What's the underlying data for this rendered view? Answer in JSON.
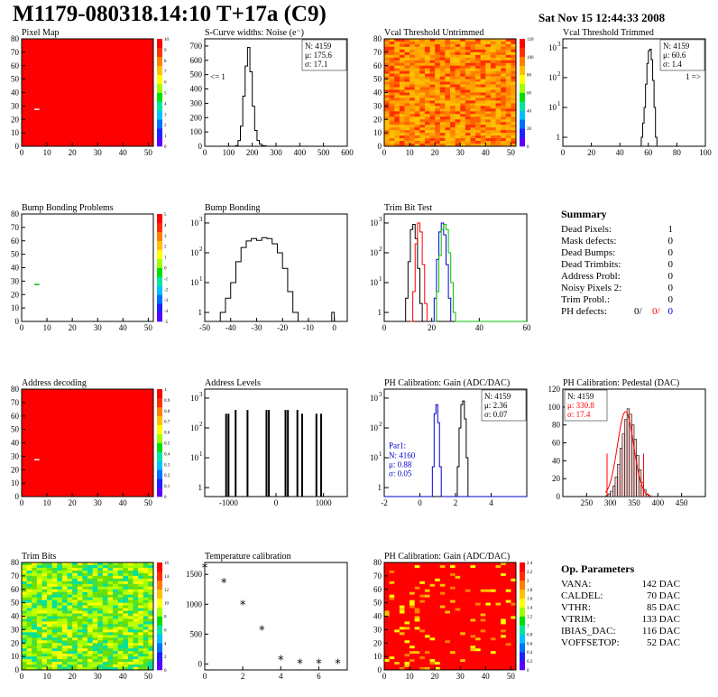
{
  "header": {
    "title": "M1179-080318.14:10 T+17a (C9)",
    "date": "Sat Nov 15 12:44:33 2008"
  },
  "colors": {
    "red": "#ff0000",
    "blue": "#0000cc",
    "green": "#00c000",
    "black": "#000000"
  },
  "summary": {
    "title": "Summary",
    "rows": [
      {
        "label": "Dead Pixels:",
        "value": "1"
      },
      {
        "label": "Mask defects:",
        "value": "0"
      },
      {
        "label": "Dead Bumps:",
        "value": "0"
      },
      {
        "label": "Dead Trimbits:",
        "value": "0"
      },
      {
        "label": "Address Probl:",
        "value": "0"
      },
      {
        "label": "Noisy Pixels 2:",
        "value": "0"
      },
      {
        "label": "Trim Probl.:",
        "value": "0"
      }
    ],
    "ph_label": "PH defects:",
    "ph_values": [
      "0/",
      "0/",
      "0"
    ]
  },
  "op_params": {
    "title": "Op. Parameters",
    "rows": [
      {
        "label": "VANA:",
        "value": "142 DAC"
      },
      {
        "label": "CALDEL:",
        "value": "70 DAC"
      },
      {
        "label": "VTHR:",
        "value": "85 DAC"
      },
      {
        "label": "VTRIM:",
        "value": "133 DAC"
      },
      {
        "label": "IBIAS_DAC:",
        "value": "116 DAC"
      },
      {
        "label": "VOFFSETOP:",
        "value": "52 DAC"
      }
    ]
  },
  "chart_data": [
    {
      "type": "heatmap",
      "title": "Pixel Map",
      "xlim": [
        0,
        52
      ],
      "ylim": [
        0,
        80
      ],
      "xticks": [
        0,
        10,
        20,
        30,
        40,
        50
      ],
      "yticks": [
        0,
        10,
        20,
        30,
        40,
        50,
        60,
        70,
        80
      ],
      "fill": "uniform-red",
      "colorbar": [
        "0",
        "1",
        "2",
        "3",
        "4",
        "5",
        "6",
        "7",
        "8",
        "9",
        "10"
      ],
      "marks": [
        [
          5,
          28
        ]
      ]
    },
    {
      "type": "line",
      "title": "S-Curve widths: Noise (e⁻)",
      "xlim": [
        0,
        600
      ],
      "ylim": [
        0,
        750
      ],
      "xticks": [
        0,
        100,
        200,
        300,
        400,
        500,
        600
      ],
      "yticks": [
        0,
        100,
        200,
        300,
        400,
        500,
        600,
        700
      ],
      "stats": [
        "N: 4159",
        "μ: 175.6",
        "σ: 17.1"
      ],
      "note": "<= 1",
      "series": [
        {
          "name": "",
          "x": [
            120,
            130,
            140,
            150,
            160,
            170,
            180,
            190,
            200,
            210,
            220,
            230,
            240,
            250,
            260
          ],
          "y": [
            0,
            5,
            40,
            140,
            350,
            560,
            690,
            520,
            280,
            110,
            40,
            15,
            5,
            2,
            0
          ]
        }
      ]
    },
    {
      "type": "heatmap",
      "title": "Vcal Threshold Untrimmed",
      "xlim": [
        0,
        52
      ],
      "ylim": [
        0,
        80
      ],
      "xticks": [
        0,
        10,
        20,
        30,
        40,
        50
      ],
      "yticks": [
        0,
        10,
        20,
        30,
        40,
        50,
        60,
        70,
        80
      ],
      "fill": "noise-orange",
      "colorbar": [
        "0",
        "20",
        "40",
        "60",
        "80",
        "100",
        "120"
      ]
    },
    {
      "type": "line",
      "log": true,
      "title": "Vcal Threshold Trimmed",
      "xlim": [
        0,
        100
      ],
      "ylim": [
        0.5,
        2000
      ],
      "xticks": [
        0,
        20,
        40,
        60,
        80,
        100
      ],
      "yticks_log": [
        1,
        10,
        100,
        1000
      ],
      "stats": [
        "N: 4159",
        "μ: 60.6",
        "σ: 1.4"
      ],
      "note": "1 =>",
      "series": [
        {
          "name": "",
          "x": [
            54,
            55,
            56,
            57,
            58,
            59,
            60,
            61,
            62,
            63,
            64,
            65,
            66
          ],
          "y": [
            0,
            1,
            3,
            10,
            60,
            300,
            800,
            900,
            400,
            80,
            10,
            1,
            0
          ]
        }
      ]
    },
    {
      "type": "heatmap",
      "title": "Bump Bonding Problems",
      "xlim": [
        0,
        52
      ],
      "ylim": [
        0,
        80
      ],
      "xticks": [
        0,
        10,
        20,
        30,
        40,
        50
      ],
      "yticks": [
        0,
        10,
        20,
        30,
        40,
        50,
        60,
        70,
        80
      ],
      "fill": "white",
      "colorbar": [
        "-5",
        "-4",
        "-3",
        "-2",
        "-1",
        "0",
        "1",
        "2",
        "3",
        "4",
        "5"
      ],
      "marks": [
        [
          5,
          28
        ]
      ]
    },
    {
      "type": "line",
      "log": true,
      "title": "Bump Bonding",
      "xlim": [
        -50,
        5
      ],
      "ylim": [
        0.5,
        2000
      ],
      "xticks": [
        -50,
        -40,
        -30,
        -20,
        -10,
        0
      ],
      "yticks_log": [
        1,
        10,
        100,
        1000
      ],
      "series": [
        {
          "name": "",
          "x": [
            -46,
            -44,
            -42,
            -40,
            -38,
            -36,
            -34,
            -32,
            -30,
            -28,
            -26,
            -24,
            -22,
            -20,
            -18,
            -16,
            -14,
            -1,
            0
          ],
          "y": [
            0,
            1,
            3,
            10,
            50,
            150,
            250,
            300,
            260,
            320,
            300,
            200,
            100,
            30,
            5,
            1,
            0,
            1,
            0
          ]
        }
      ]
    },
    {
      "type": "line",
      "log": true,
      "title": "Trim Bit Test",
      "xlim": [
        0,
        60
      ],
      "ylim": [
        0.5,
        2000
      ],
      "xticks": [
        0,
        20,
        40,
        60
      ],
      "yticks_log": [
        1,
        10,
        100,
        1000
      ],
      "series": [
        {
          "name": "",
          "color": "black",
          "x": [
            8,
            9,
            10,
            11,
            12,
            13,
            14,
            15,
            16
          ],
          "y": [
            0,
            3,
            50,
            600,
            900,
            300,
            30,
            2,
            0
          ]
        },
        {
          "name": "",
          "color": "red",
          "x": [
            11,
            12,
            13,
            14,
            15,
            16,
            17,
            18
          ],
          "y": [
            0,
            5,
            200,
            1000,
            500,
            40,
            2,
            0
          ]
        },
        {
          "name": "",
          "color": "blue",
          "x": [
            20,
            21,
            22,
            23,
            24,
            25,
            26,
            27,
            28
          ],
          "y": [
            0,
            3,
            60,
            500,
            1000,
            400,
            40,
            3,
            0
          ]
        },
        {
          "name": "",
          "color": "green",
          "x": [
            21,
            22,
            23,
            24,
            25,
            26,
            27,
            28,
            29,
            30,
            60
          ],
          "y": [
            0,
            5,
            80,
            600,
            900,
            600,
            100,
            10,
            1,
            0,
            0
          ]
        }
      ]
    },
    {
      "type": "heatmap",
      "title": "Address decoding",
      "xlim": [
        0,
        52
      ],
      "ylim": [
        0,
        80
      ],
      "xticks": [
        0,
        10,
        20,
        30,
        40,
        50
      ],
      "yticks": [
        0,
        10,
        20,
        30,
        40,
        50,
        60,
        70,
        80
      ],
      "fill": "uniform-red",
      "colorbar": [
        "0",
        "0.1",
        "0.2",
        "0.3",
        "0.4",
        "0.5",
        "0.6",
        "0.7",
        "0.8",
        "0.9",
        "1"
      ],
      "marks": [
        [
          5,
          28
        ]
      ]
    },
    {
      "type": "bar",
      "log": true,
      "title": "Address Levels",
      "xlim": [
        -1500,
        1500
      ],
      "ylim": [
        0.5,
        2000
      ],
      "xticks": [
        -1000,
        0,
        1000
      ],
      "yticks_log": [
        1,
        10,
        100,
        1000
      ],
      "x": [
        -1050,
        -1000,
        -850,
        -600,
        -200,
        -150,
        200,
        250,
        450,
        550,
        850,
        950
      ],
      "values": [
        300,
        300,
        400,
        400,
        400,
        400,
        400,
        400,
        400,
        300,
        300,
        300
      ]
    },
    {
      "type": "line",
      "log": true,
      "title": "PH Calibration: Gain (ADC/DAC)",
      "xlim": [
        -2,
        6
      ],
      "ylim": [
        0.5,
        2000
      ],
      "xticks": [
        -2,
        0,
        2,
        4
      ],
      "yticks_log": [
        1,
        10,
        100,
        1000
      ],
      "stats": [
        "N: 4159",
        "μ: 2.36",
        "σ: 0.07"
      ],
      "stats2_title": "Par1:",
      "stats2": [
        "N: 4160",
        "μ: 0.88",
        "σ: 0.05"
      ],
      "series": [
        {
          "name": "",
          "color": "black",
          "x": [
            2.0,
            2.1,
            2.2,
            2.3,
            2.4,
            2.5,
            2.6,
            2.7,
            6
          ],
          "y": [
            0,
            5,
            100,
            600,
            800,
            200,
            10,
            0,
            0
          ]
        },
        {
          "name": "",
          "color": "blue",
          "x": [
            -2,
            0.6,
            0.7,
            0.8,
            0.9,
            1.0,
            1.1,
            1.2,
            6
          ],
          "y": [
            0,
            0,
            5,
            300,
            600,
            150,
            5,
            0,
            0
          ]
        }
      ]
    },
    {
      "type": "bar",
      "title": "PH Calibration: Pedestal (DAC)",
      "xlim": [
        200,
        500
      ],
      "ylim": [
        0,
        120
      ],
      "xticks": [
        250,
        300,
        350,
        400,
        450
      ],
      "yticks": [
        0,
        20,
        40,
        60,
        80,
        100,
        120
      ],
      "stats": [
        "N: 4159",
        "μ: 330.8",
        "σ: 17.4"
      ],
      "x": [
        290,
        295,
        300,
        305,
        310,
        315,
        320,
        325,
        330,
        335,
        340,
        345,
        350,
        355,
        360,
        365,
        370,
        375,
        380
      ],
      "values": [
        1,
        3,
        6,
        12,
        22,
        36,
        54,
        70,
        86,
        98,
        92,
        80,
        64,
        46,
        30,
        16,
        8,
        3,
        1
      ],
      "cut_lines": [
        293,
        370
      ]
    },
    {
      "type": "heatmap",
      "title": "Trim Bits",
      "xlim": [
        0,
        52
      ],
      "ylim": [
        0,
        80
      ],
      "xticks": [
        0,
        10,
        20,
        30,
        40,
        50
      ],
      "yticks": [
        0,
        10,
        20,
        30,
        40,
        50,
        60,
        70,
        80
      ],
      "fill": "noise-green",
      "colorbar": [
        "0",
        "2",
        "4",
        "6",
        "8",
        "10",
        "12",
        "14",
        "16"
      ]
    },
    {
      "type": "scatter",
      "title": "Temperature calibration",
      "xlim": [
        0,
        7.5
      ],
      "ylim": [
        -100,
        1700
      ],
      "xticks": [
        0,
        2,
        4,
        6
      ],
      "yticks": [
        0,
        500,
        1000,
        1500
      ],
      "x": [
        0,
        1,
        2,
        3,
        4,
        5,
        6,
        7
      ],
      "y": [
        1600,
        1350,
        980,
        560,
        60,
        0,
        0,
        0
      ]
    },
    {
      "type": "heatmap",
      "title": "PH Calibration: Gain (ADC/DAC)",
      "xlim": [
        0,
        52
      ],
      "ylim": [
        0,
        80
      ],
      "xticks": [
        0,
        10,
        20,
        30,
        40,
        50
      ],
      "yticks": [
        0,
        10,
        20,
        30,
        40,
        50,
        60,
        70,
        80
      ],
      "fill": "noise-red",
      "colorbar": [
        "0",
        "0.2",
        "0.4",
        "0.6",
        "0.8",
        "1",
        "1.2",
        "1.4",
        "1.6",
        "1.8",
        "2",
        "2.2",
        "2.4"
      ]
    }
  ]
}
